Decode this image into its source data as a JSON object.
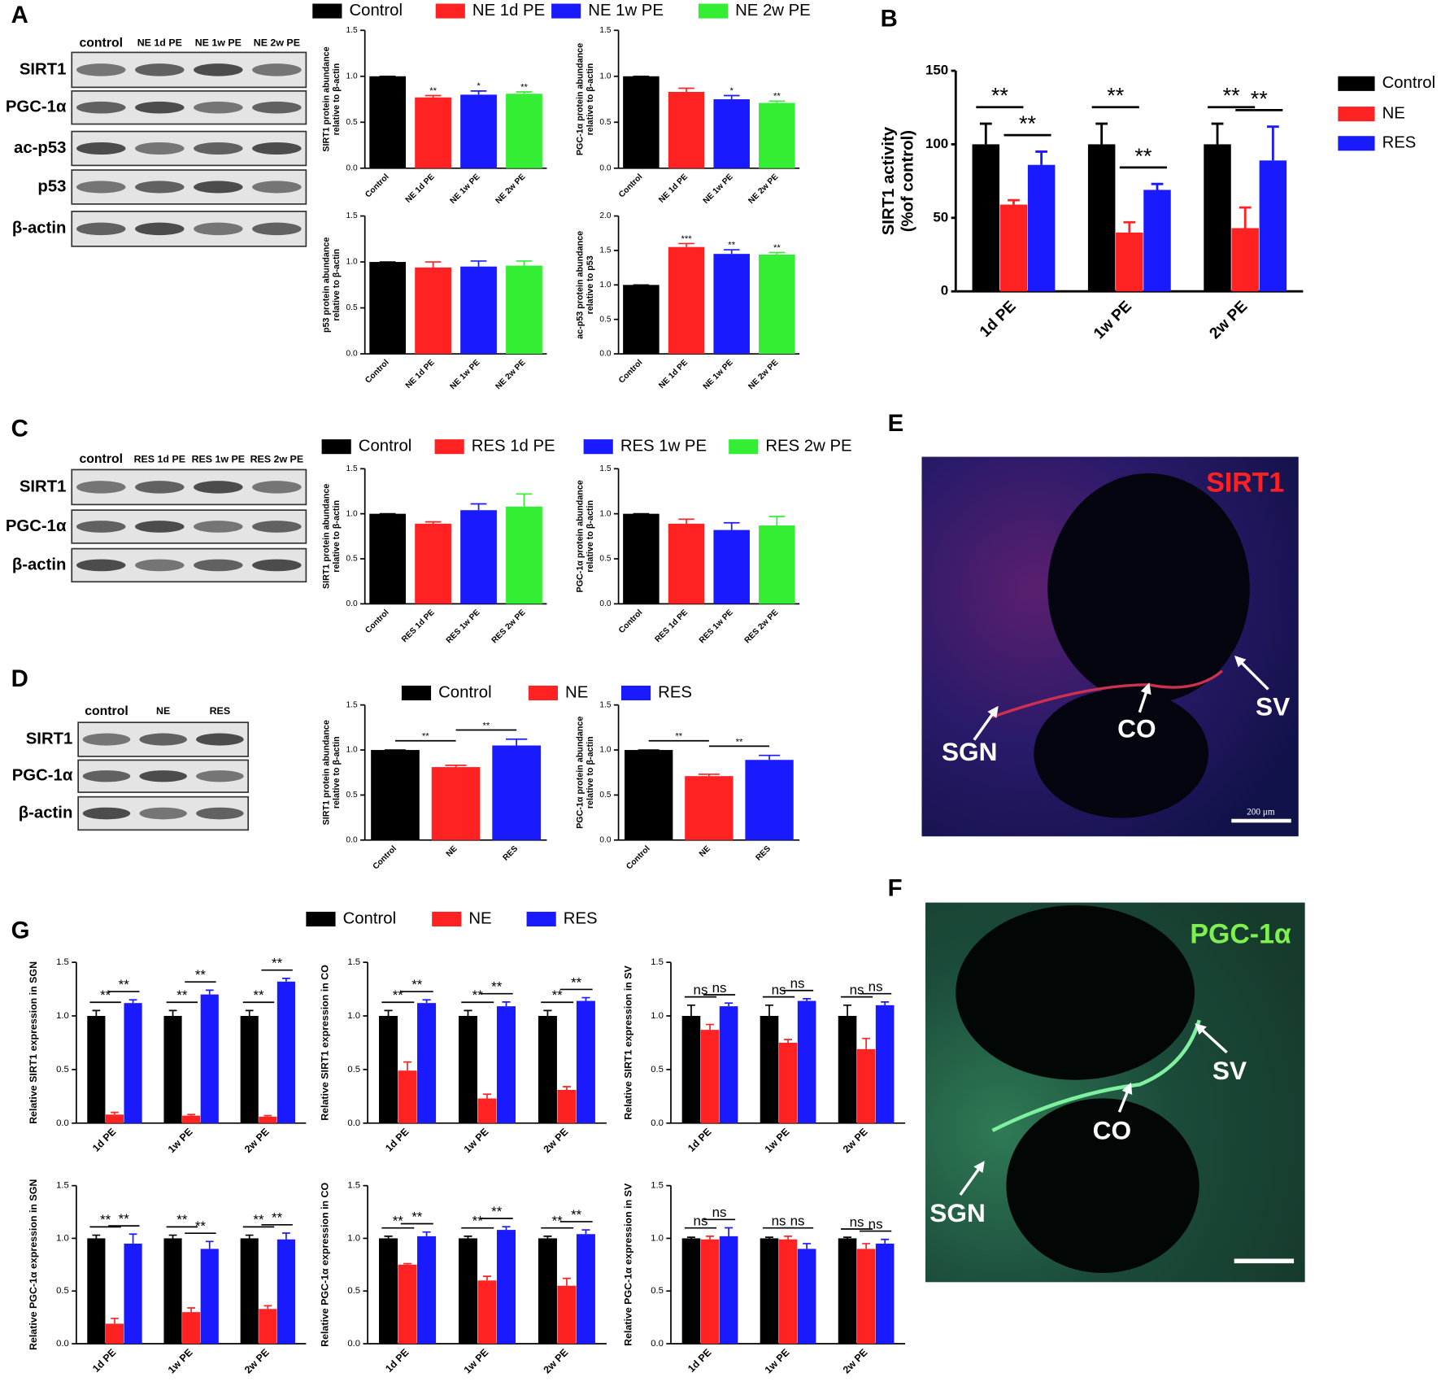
{
  "panel_labels": [
    "A",
    "B",
    "C",
    "D",
    "E",
    "F",
    "G"
  ],
  "blots": [
    {
      "lanes": [
        "control",
        "NE 1d PE",
        "NE 1w PE",
        "NE 2w PE"
      ],
      "rows": [
        "SIRT1",
        "PGC-1α",
        "ac-p53",
        "p53",
        "β-actin"
      ]
    },
    {
      "lanes": [
        "control",
        "RES 1d PE",
        "RES 1w PE",
        "RES 2w PE"
      ],
      "rows": [
        "SIRT1",
        "PGC-1α",
        "β-actin"
      ]
    },
    {
      "lanes": [
        "control",
        "NE",
        "RES"
      ],
      "rows": [
        "SIRT1",
        "PGC-1α",
        "β-actin"
      ]
    }
  ],
  "micrographs": [
    {
      "stain": "SIRT1",
      "labels": [
        "SGN",
        "CO",
        "SV"
      ],
      "scale_bar": "200 μm"
    },
    {
      "stain": "PGC-1α",
      "labels": [
        "SGN",
        "CO",
        "SV"
      ]
    }
  ],
  "chart_data": [
    {
      "type": "bar",
      "y_label": [
        "SIRT1 protein abundance",
        "relative to β-actin"
      ],
      "categories": [
        "Control",
        "NE 1d PE",
        "NE 1w PE",
        "NE 2w PE"
      ],
      "colors": [
        "#000000",
        "#ff2222",
        "#1a1aff",
        "#33ee33"
      ],
      "values": [
        1,
        0.77,
        0.8,
        0.81
      ],
      "errors": [
        0,
        0.02,
        0.04,
        0.02
      ],
      "significance": [
        null,
        "**",
        "*",
        "**"
      ],
      "ylim": [
        0,
        1.5
      ],
      "yticks": [
        {
          "value": 0,
          "label": "0.0"
        },
        0.5,
        {
          "value": 1,
          "label": "1.0"
        },
        1.5
      ],
      "legend": "top"
    },
    {
      "type": "bar",
      "y_label": [
        "PGC-1α protein abundance",
        "relative to β-actin"
      ],
      "categories": [
        "Control",
        "NE 1d PE",
        "NE 1w PE",
        "NE 2w PE"
      ],
      "colors": [
        "#000000",
        "#ff2222",
        "#1a1aff",
        "#33ee33"
      ],
      "values": [
        1,
        0.83,
        0.75,
        0.71
      ],
      "errors": [
        0,
        0.04,
        0.04,
        0.02
      ],
      "significance": [
        null,
        null,
        "*",
        "**"
      ],
      "ylim": [
        0,
        1.5
      ],
      "yticks": [
        {
          "value": 0,
          "label": "0.0"
        },
        0.5,
        {
          "value": 1,
          "label": "1.0"
        },
        1.5
      ]
    },
    {
      "type": "bar",
      "y_label": [
        "p53 protein abundance",
        "relative to β-actin"
      ],
      "categories": [
        "Control",
        "NE 1d PE",
        "NE 1w PE",
        "NE 2w PE"
      ],
      "colors": [
        "#000000",
        "#ff2222",
        "#1a1aff",
        "#33ee33"
      ],
      "values": [
        1,
        0.94,
        0.95,
        0.96
      ],
      "errors": [
        0,
        0.06,
        0.06,
        0.05
      ],
      "ylim": [
        0,
        1.5
      ],
      "yticks": [
        {
          "value": 0,
          "label": "0.0"
        },
        0.5,
        {
          "value": 1,
          "label": "1.0"
        },
        1.5
      ]
    },
    {
      "type": "bar",
      "y_label": [
        "ac-p53 protein abundance",
        "relative to p53"
      ],
      "categories": [
        "Control",
        "NE 1d PE",
        "NE 1w PE",
        "NE 2w PE"
      ],
      "colors": [
        "#000000",
        "#ff2222",
        "#1a1aff",
        "#33ee33"
      ],
      "values": [
        1,
        1.55,
        1.45,
        1.44
      ],
      "errors": [
        0,
        0.05,
        0.06,
        0.03
      ],
      "significance": [
        null,
        "***",
        "**",
        "**"
      ],
      "ylim": [
        0,
        2
      ],
      "yticks": [
        {
          "value": 0,
          "label": "0.0"
        },
        0.5,
        {
          "value": 1,
          "label": "1.0"
        },
        1.5,
        {
          "value": 2,
          "label": "2.0"
        }
      ]
    },
    {
      "type": "grouped_bar",
      "y_label": [
        "SIRT1 activity",
        "(%of control)"
      ],
      "categories": [
        "1d PE",
        "1w PE",
        "2w PE"
      ],
      "series": [
        {
          "name": "Control",
          "color": "#000000",
          "values": [
            100,
            100,
            100
          ],
          "errors": [
            14,
            14,
            14
          ]
        },
        {
          "name": "NE",
          "color": "#ff2222",
          "values": [
            59,
            40,
            43
          ],
          "errors": [
            3,
            7,
            14
          ]
        },
        {
          "name": "RES",
          "color": "#1a1aff",
          "values": [
            86,
            69,
            89
          ],
          "errors": [
            9,
            4,
            23
          ]
        }
      ],
      "comparisons": [
        [
          "**",
          "**"
        ],
        [
          "**",
          "**"
        ],
        [
          "**",
          "**"
        ]
      ],
      "ylim": [
        0,
        150
      ],
      "yticks": [
        0,
        50,
        100,
        150
      ],
      "legend": "right"
    },
    {
      "type": "bar",
      "y_label": [
        "SIRT1 protein abundance",
        "relative to β-actin"
      ],
      "categories": [
        "Control",
        "RES 1d PE",
        "RES 1w PE",
        "RES 2w PE"
      ],
      "colors": [
        "#000000",
        "#ff2222",
        "#1a1aff",
        "#33ee33"
      ],
      "values": [
        1,
        0.89,
        1.04,
        1.08
      ],
      "errors": [
        0,
        0.02,
        0.07,
        0.14
      ],
      "ylim": [
        0,
        1.5
      ],
      "yticks": [
        {
          "value": 0,
          "label": "0.0"
        },
        0.5,
        {
          "value": 1,
          "label": "1.0"
        },
        1.5
      ],
      "legend": "top"
    },
    {
      "type": "bar",
      "y_label": [
        "PGC-1α protein abundance",
        "relative to β-actin"
      ],
      "categories": [
        "Control",
        "RES 1d PE",
        "RES 1w PE",
        "RES 2w PE"
      ],
      "colors": [
        "#000000",
        "#ff2222",
        "#1a1aff",
        "#33ee33"
      ],
      "values": [
        1,
        0.89,
        0.82,
        0.87
      ],
      "errors": [
        0,
        0.05,
        0.08,
        0.1
      ],
      "ylim": [
        0,
        1.5
      ],
      "yticks": [
        {
          "value": 0,
          "label": "0.0"
        },
        0.5,
        {
          "value": 1,
          "label": "1.0"
        },
        1.5
      ]
    },
    {
      "type": "bar",
      "y_label": [
        "SIRT1 protein abundance",
        "relative to β-actin"
      ],
      "categories": [
        "Control",
        "NE",
        "RES"
      ],
      "colors": [
        "#000000",
        "#ff2222",
        "#1a1aff"
      ],
      "values": [
        1,
        0.81,
        1.05
      ],
      "errors": [
        0,
        0.02,
        0.07
      ],
      "comparisons": [
        "**",
        "**"
      ],
      "ylim": [
        0,
        1.5
      ],
      "yticks": [
        {
          "value": 0,
          "label": "0.0"
        },
        0.5,
        {
          "value": 1,
          "label": "1.0"
        },
        1.5
      ],
      "legend": "top"
    },
    {
      "type": "bar",
      "y_label": [
        "PGC-1α protein abundance",
        "relative to β-actin"
      ],
      "categories": [
        "Control",
        "NE",
        "RES"
      ],
      "colors": [
        "#000000",
        "#ff2222",
        "#1a1aff"
      ],
      "values": [
        1,
        0.71,
        0.89
      ],
      "errors": [
        0,
        0.02,
        0.05
      ],
      "comparisons": [
        "**",
        "**"
      ],
      "ylim": [
        0,
        1.5
      ],
      "yticks": [
        {
          "value": 0,
          "label": "0.0"
        },
        0.5,
        {
          "value": 1,
          "label": "1.0"
        },
        1.5
      ]
    },
    {
      "type": "grouped_bar",
      "y_label": "Relative SIRT1 expression in SGN",
      "categories": [
        "1d PE",
        "1w PE",
        "2w PE"
      ],
      "series": [
        {
          "name": "Control",
          "color": "#000000",
          "values": [
            1,
            1,
            1
          ],
          "errors": [
            0.05,
            0.05,
            0.05
          ]
        },
        {
          "name": "NE",
          "color": "#ff2222",
          "values": [
            0.08,
            0.07,
            0.06
          ],
          "errors": [
            0.02,
            0.01,
            0.01
          ]
        },
        {
          "name": "RES",
          "color": "#1a1aff",
          "values": [
            1.12,
            1.2,
            1.32
          ],
          "errors": [
            0.03,
            0.04,
            0.03
          ]
        }
      ],
      "comparisons": [
        [
          "**",
          "**"
        ],
        [
          "**",
          "**"
        ],
        [
          "**",
          "**"
        ]
      ],
      "ylim": [
        0,
        1.5
      ],
      "yticks": [
        {
          "value": 0,
          "label": "0.0"
        },
        0.5,
        {
          "value": 1,
          "label": "1.0"
        },
        1.5
      ],
      "legend": "top"
    },
    {
      "type": "grouped_bar",
      "y_label": "Relative SIRT1 expression in CO",
      "categories": [
        "1d PE",
        "1w PE",
        "2w PE"
      ],
      "series": [
        {
          "name": "Control",
          "color": "#000000",
          "values": [
            1,
            1,
            1
          ],
          "errors": [
            0.05,
            0.05,
            0.05
          ]
        },
        {
          "name": "NE",
          "color": "#ff2222",
          "values": [
            0.49,
            0.23,
            0.31
          ],
          "errors": [
            0.08,
            0.04,
            0.03
          ]
        },
        {
          "name": "RES",
          "color": "#1a1aff",
          "values": [
            1.12,
            1.09,
            1.14
          ],
          "errors": [
            0.03,
            0.04,
            0.03
          ]
        }
      ],
      "comparisons": [
        [
          "**",
          "**"
        ],
        [
          "**",
          "**"
        ],
        [
          "**",
          "**"
        ]
      ],
      "ylim": [
        0,
        1.5
      ],
      "yticks": [
        {
          "value": 0,
          "label": "0.0"
        },
        0.5,
        {
          "value": 1,
          "label": "1.0"
        },
        1.5
      ]
    },
    {
      "type": "grouped_bar",
      "y_label": "Relative SIRT1 expression in SV",
      "categories": [
        "1d PE",
        "1w PE",
        "2w PE"
      ],
      "series": [
        {
          "name": "Control",
          "color": "#000000",
          "values": [
            1,
            1,
            1
          ],
          "errors": [
            0.1,
            0.1,
            0.1
          ]
        },
        {
          "name": "NE",
          "color": "#ff2222",
          "values": [
            0.87,
            0.75,
            0.69
          ],
          "errors": [
            0.05,
            0.03,
            0.1
          ]
        },
        {
          "name": "RES",
          "color": "#1a1aff",
          "values": [
            1.09,
            1.14,
            1.1
          ],
          "errors": [
            0.03,
            0.02,
            0.03
          ]
        }
      ],
      "comparisons": [
        [
          "ns",
          "ns"
        ],
        [
          "ns",
          "ns"
        ],
        [
          "ns",
          "ns"
        ]
      ],
      "ylim": [
        0,
        1.5
      ],
      "yticks": [
        {
          "value": 0,
          "label": "0.0"
        },
        0.5,
        {
          "value": 1,
          "label": "1.0"
        },
        1.5
      ]
    },
    {
      "type": "grouped_bar",
      "y_label": "Relative PGC-1α expression in SGN",
      "categories": [
        "1d PE",
        "1w PE",
        "2w PE"
      ],
      "series": [
        {
          "name": "Control",
          "color": "#000000",
          "values": [
            1,
            1,
            1
          ],
          "errors": [
            0.03,
            0.03,
            0.03
          ]
        },
        {
          "name": "NE",
          "color": "#ff2222",
          "values": [
            0.19,
            0.3,
            0.33
          ],
          "errors": [
            0.05,
            0.04,
            0.03
          ]
        },
        {
          "name": "RES",
          "color": "#1a1aff",
          "values": [
            0.95,
            0.9,
            0.99
          ],
          "errors": [
            0.09,
            0.07,
            0.06
          ]
        }
      ],
      "comparisons": [
        [
          "**",
          "**"
        ],
        [
          "**",
          "**"
        ],
        [
          "**",
          "**"
        ]
      ],
      "ylim": [
        0,
        1.5
      ],
      "yticks": [
        {
          "value": 0,
          "label": "0.0"
        },
        0.5,
        {
          "value": 1,
          "label": "1.0"
        },
        1.5
      ]
    },
    {
      "type": "grouped_bar",
      "y_label": "Relative PGC-1α expression in CO",
      "categories": [
        "1d PE",
        "1w PE",
        "2w PE"
      ],
      "series": [
        {
          "name": "Control",
          "color": "#000000",
          "values": [
            1,
            1,
            1
          ],
          "errors": [
            0.02,
            0.02,
            0.02
          ]
        },
        {
          "name": "NE",
          "color": "#ff2222",
          "values": [
            0.75,
            0.6,
            0.55
          ],
          "errors": [
            0.01,
            0.04,
            0.07
          ]
        },
        {
          "name": "RES",
          "color": "#1a1aff",
          "values": [
            1.02,
            1.08,
            1.04
          ],
          "errors": [
            0.04,
            0.03,
            0.04
          ]
        }
      ],
      "comparisons": [
        [
          "**",
          "**"
        ],
        [
          "**",
          "**"
        ],
        [
          "**",
          "**"
        ]
      ],
      "ylim": [
        0,
        1.5
      ],
      "yticks": [
        {
          "value": 0,
          "label": "0.0"
        },
        0.5,
        {
          "value": 1,
          "label": "1.0"
        },
        1.5
      ]
    },
    {
      "type": "grouped_bar",
      "y_label": "Relative PGC-1α expression in SV",
      "categories": [
        "1d PE",
        "1w PE",
        "2w PE"
      ],
      "series": [
        {
          "name": "Control",
          "color": "#000000",
          "values": [
            1,
            1,
            1
          ],
          "errors": [
            0.01,
            0.01,
            0.01
          ]
        },
        {
          "name": "NE",
          "color": "#ff2222",
          "values": [
            0.99,
            0.99,
            0.9
          ],
          "errors": [
            0.03,
            0.03,
            0.05
          ]
        },
        {
          "name": "RES",
          "color": "#1a1aff",
          "values": [
            1.02,
            0.9,
            0.95
          ],
          "errors": [
            0.08,
            0.05,
            0.04
          ]
        }
      ],
      "comparisons": [
        [
          "ns",
          "ns"
        ],
        [
          "ns",
          "ns"
        ],
        [
          "ns",
          "ns"
        ]
      ],
      "ylim": [
        0,
        1.5
      ],
      "yticks": [
        {
          "value": 0,
          "label": "0.0"
        },
        0.5,
        {
          "value": 1,
          "label": "1.0"
        },
        1.5
      ]
    }
  ]
}
